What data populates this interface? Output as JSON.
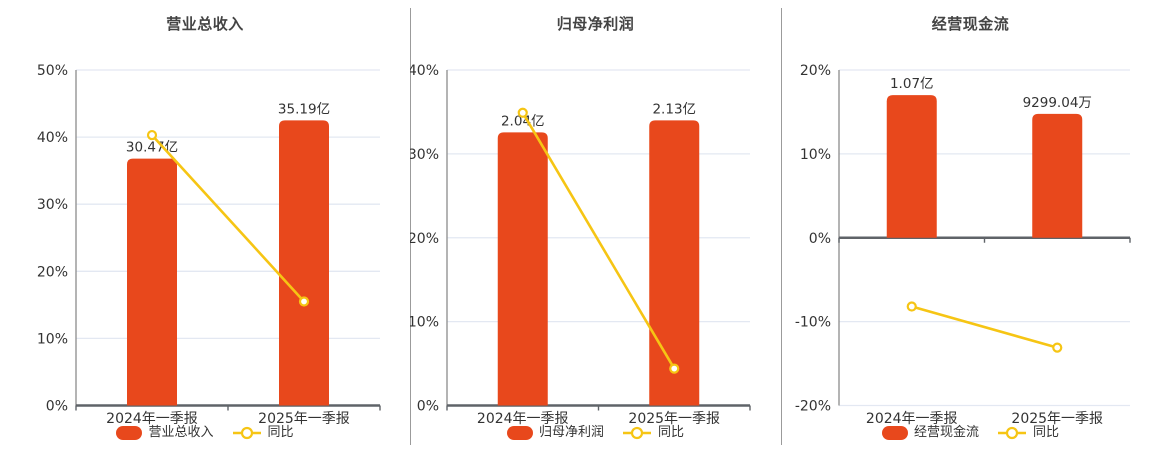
{
  "app": {
    "background": "#ffffff"
  },
  "colors": {
    "bar": "#e8481c",
    "line": "#f6c514",
    "grid": "#e3e8f2",
    "axis": "#8c8c8c",
    "baseline": "#5f6368",
    "divider": "#9b9b9b",
    "title_text": "#444444",
    "label_text": "#333333"
  },
  "chart_data": [
    {
      "type": "bar",
      "title": "营业总收入",
      "categories": [
        "2024年一季报",
        "2025年一季报"
      ],
      "bars": {
        "name": "营业总收入",
        "values_yi": [
          30.47,
          35.19
        ],
        "labels": [
          "30.47亿",
          "35.19亿"
        ]
      },
      "line": {
        "name": "同比",
        "values_pct": [
          40.3,
          15.5
        ]
      },
      "ylim": [
        0,
        50
      ],
      "ytick_step": 10,
      "ytick_labels": [
        "50%",
        "40%",
        "30%",
        "20%",
        "10%",
        "0%"
      ],
      "grid": true,
      "legend_position": "bottom"
    },
    {
      "type": "bar",
      "title": "归母净利润",
      "categories": [
        "2024年一季报",
        "2025年一季报"
      ],
      "bars": {
        "name": "归母净利润",
        "values_yi": [
          2.04,
          2.13
        ],
        "labels": [
          "2.04亿",
          "2.13亿"
        ]
      },
      "line": {
        "name": "同比",
        "values_pct": [
          34.9,
          4.4
        ]
      },
      "ylim": [
        0,
        40
      ],
      "ytick_step": 10,
      "ytick_labels": [
        "40%",
        "30%",
        "20%",
        "10%",
        "0%"
      ],
      "grid": true,
      "legend_position": "bottom"
    },
    {
      "type": "bar",
      "title": "经营现金流",
      "categories": [
        "2024年一季报",
        "2025年一季报"
      ],
      "bars": {
        "name": "经营现金流",
        "values_yi": [
          1.07,
          0.929904
        ],
        "labels": [
          "1.07亿",
          "9299.04万"
        ]
      },
      "line": {
        "name": "同比",
        "values_pct": [
          -8.2,
          -13.1
        ]
      },
      "ylim": [
        -20,
        20
      ],
      "ytick_step": 10,
      "ytick_labels": [
        "20%",
        "10%",
        "0%",
        "-10%",
        "-20%"
      ],
      "grid": true,
      "legend_position": "bottom"
    }
  ]
}
